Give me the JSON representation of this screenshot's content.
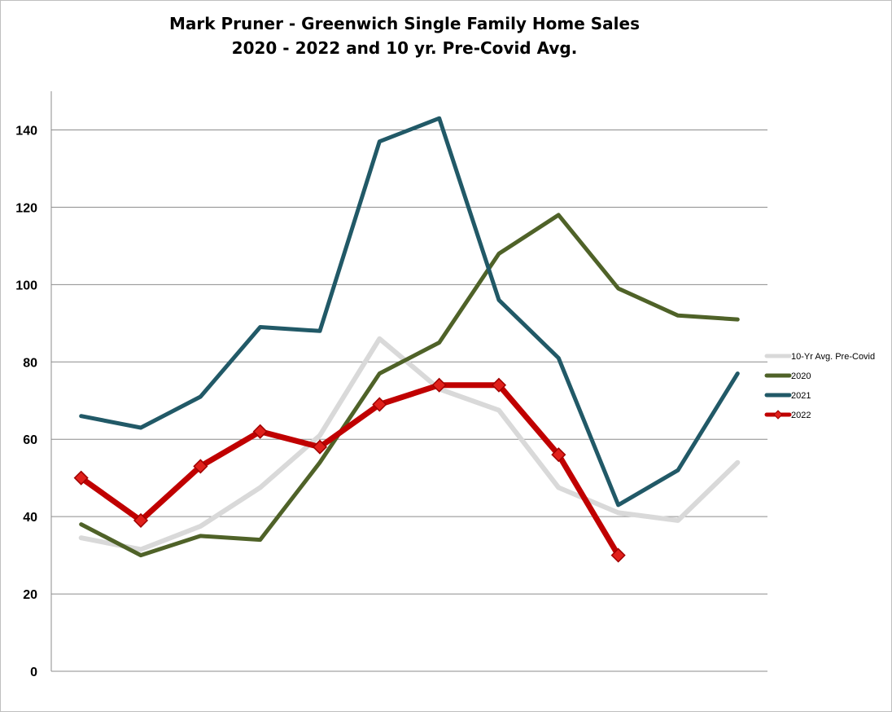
{
  "chart_data": {
    "type": "line",
    "title": "Mark Pruner - Greenwich Single Family Home Sales",
    "subtitle": "2020 - 2022 and 10 yr. Pre-Covid Avg.",
    "xlabel": "",
    "ylabel": "",
    "ylim": [
      0,
      150
    ],
    "yticks": [
      0,
      20,
      40,
      60,
      80,
      100,
      120,
      140
    ],
    "grid": true,
    "legend": "right",
    "x": [
      1,
      2,
      3,
      4,
      5,
      6,
      7,
      8,
      9,
      10,
      11,
      12
    ],
    "series": [
      {
        "name": "10-Yr Avg. Pre-Covid",
        "color": "#d9d9d9",
        "width": 6,
        "marker": false,
        "values": [
          34.5,
          31.5,
          37.5,
          47.5,
          61,
          86,
          73,
          67.5,
          47.5,
          41,
          39,
          54
        ]
      },
      {
        "name": "2020",
        "color": "#4f6228",
        "width": 5,
        "marker": false,
        "values": [
          38,
          30,
          35,
          34,
          54,
          77,
          85,
          108,
          118,
          99,
          92,
          91
        ]
      },
      {
        "name": "2021",
        "color": "#215967",
        "width": 5,
        "marker": false,
        "values": [
          66,
          63,
          71,
          89,
          88,
          137,
          143,
          96,
          81,
          43,
          52,
          77
        ]
      },
      {
        "name": "2022",
        "color": "#c00000",
        "width": 7,
        "marker": true,
        "values": [
          50,
          39,
          53,
          62,
          58,
          69,
          74,
          74,
          56,
          30,
          null,
          null
        ]
      }
    ]
  }
}
